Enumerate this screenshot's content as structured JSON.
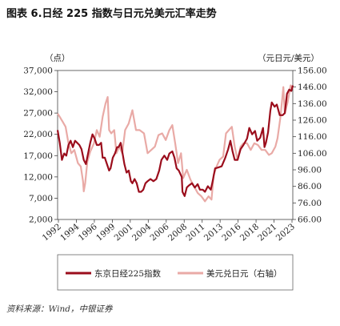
{
  "title": "图表 6.日经 225 指数与日元兑美元汇率走势",
  "source": "资料来源：Wind，中银证券",
  "colors": {
    "nikkei": "#9b0d1c",
    "usdjpy": "#e9aaa6"
  },
  "chart_data": {
    "type": "line",
    "left_unit": "（点）",
    "right_unit": "（元日元/美元）",
    "x_ticks": [
      "1992",
      "1994",
      "1996",
      "1999",
      "2001",
      "2004",
      "2006",
      "2008",
      "2011",
      "2013",
      "2016",
      "2018",
      "2021",
      "2023"
    ],
    "x_range": [
      1991.7,
      2024.1
    ],
    "y_left_ticks": [
      "2,000",
      "7,000",
      "12,000",
      "17,000",
      "22,000",
      "27,000",
      "32,000",
      "37,000"
    ],
    "y_left_range": [
      2000,
      37000
    ],
    "y_right_ticks": [
      "66.00",
      "76.00",
      "86.00",
      "96.00",
      "106.00",
      "116.00",
      "126.00",
      "136.00",
      "146.00",
      "156.00"
    ],
    "y_right_range": [
      66,
      156
    ],
    "grid": false,
    "legend_position": "bottom",
    "series": [
      {
        "name": "东京日经225指数",
        "axis": "left",
        "x": [
          1991.7,
          1992.0,
          1992.3,
          1992.6,
          1992.9,
          1993.2,
          1993.5,
          1993.8,
          1994.1,
          1994.4,
          1994.7,
          1995.0,
          1995.3,
          1995.6,
          1995.9,
          1996.2,
          1996.5,
          1996.8,
          1997.1,
          1997.4,
          1997.7,
          1997.9,
          1998.2,
          1998.5,
          1998.8,
          1999.0,
          1999.3,
          1999.6,
          1999.9,
          2000.1,
          2000.4,
          2000.7,
          2000.9,
          2001.2,
          2001.5,
          2001.8,
          2002.0,
          2002.3,
          2002.6,
          2002.9,
          2003.2,
          2003.5,
          2003.8,
          2004.1,
          2004.5,
          2004.9,
          2005.3,
          2005.7,
          2006.0,
          2006.4,
          2006.8,
          2007.1,
          2007.5,
          2007.8,
          2008.1,
          2008.4,
          2008.8,
          2008.9,
          2009.2,
          2009.5,
          2009.8,
          2010.2,
          2010.6,
          2011.0,
          2011.3,
          2011.7,
          2012.0,
          2012.4,
          2012.8,
          2013.0,
          2013.4,
          2013.8,
          2014.3,
          2014.8,
          2015.2,
          2015.5,
          2015.8,
          2016.1,
          2016.5,
          2016.9,
          2017.3,
          2017.8,
          2018.1,
          2018.5,
          2018.9,
          2019.2,
          2019.6,
          2020.0,
          2020.2,
          2020.4,
          2020.7,
          2021.0,
          2021.2,
          2021.6,
          2021.9,
          2022.3,
          2022.7,
          2023.0,
          2023.3,
          2023.6,
          2023.9,
          2024.1
        ],
        "values": [
          23000,
          20000,
          16000,
          17500,
          17000,
          19500,
          20500,
          19000,
          20500,
          20000,
          19500,
          18500,
          16000,
          15000,
          17500,
          20000,
          22000,
          21000,
          19500,
          19500,
          20000,
          16500,
          16500,
          15000,
          13500,
          14000,
          16500,
          17500,
          19000,
          19000,
          20000,
          17000,
          15000,
          13000,
          13500,
          11000,
          10500,
          11500,
          10500,
          8500,
          8500,
          9000,
          10500,
          11000,
          11500,
          11000,
          11500,
          13500,
          16000,
          17000,
          16000,
          17500,
          18000,
          16500,
          14000,
          13500,
          12000,
          8500,
          7500,
          9500,
          10000,
          10500,
          9500,
          10300,
          9000,
          9000,
          8500,
          9800,
          9000,
          10500,
          14000,
          14200,
          14500,
          16500,
          18500,
          20500,
          18000,
          16000,
          16000,
          18500,
          19500,
          21000,
          23500,
          22000,
          22800,
          20500,
          21200,
          23500,
          19000,
          20000,
          22500,
          27500,
          29500,
          28500,
          29000,
          26500,
          26500,
          27000,
          31500,
          32500,
          32200,
          33500
        ]
      },
      {
        "name": "美元兑日元（右轴）",
        "axis": "right",
        "x": [
          1991.7,
          1992.0,
          1992.4,
          1992.8,
          1993.2,
          1993.6,
          1994.0,
          1994.5,
          1994.9,
          1995.2,
          1995.3,
          1995.5,
          1995.8,
          1996.2,
          1996.7,
          1997.1,
          1997.5,
          1997.9,
          1998.3,
          1998.6,
          1998.8,
          1999.1,
          1999.5,
          1999.8,
          2000.2,
          2000.6,
          2001.0,
          2001.5,
          2002.0,
          2002.5,
          2003.0,
          2003.6,
          2004.1,
          2004.6,
          2005.1,
          2005.6,
          2006.1,
          2006.6,
          2007.1,
          2007.5,
          2007.9,
          2008.3,
          2008.7,
          2009.0,
          2009.5,
          2010.0,
          2010.5,
          2011.0,
          2011.5,
          2012.0,
          2012.5,
          2012.9,
          2013.2,
          2013.6,
          2014.0,
          2014.5,
          2014.9,
          2015.3,
          2015.7,
          2016.1,
          2016.5,
          2016.9,
          2017.3,
          2017.8,
          2018.3,
          2018.8,
          2019.3,
          2019.8,
          2020.3,
          2020.8,
          2021.2,
          2021.7,
          2022.0,
          2022.4,
          2022.8,
          2023.0,
          2023.4,
          2023.8,
          2024.1
        ],
        "values": [
          130,
          128,
          125,
          122,
          112,
          106,
          108,
          100,
          98,
          89,
          83,
          88,
          101,
          107,
          112,
          120,
          116,
          128,
          136,
          140,
          120,
          118,
          120,
          106,
          110,
          106,
          120,
          124,
          132,
          120,
          120,
          118,
          106,
          108,
          110,
          117,
          118,
          114,
          120,
          123,
          112,
          100,
          106,
          91,
          96,
          90,
          86,
          82,
          80,
          77,
          80,
          78,
          93,
          98,
          102,
          104,
          118,
          120,
          122,
          110,
          102,
          110,
          112,
          112,
          108,
          112,
          111,
          108,
          108,
          105,
          106,
          110,
          115,
          128,
          146,
          130,
          137,
          147,
          145
        ]
      }
    ]
  },
  "legend": [
    {
      "label": "东京日经225指数"
    },
    {
      "label": "美元兑日元（右轴）"
    }
  ]
}
